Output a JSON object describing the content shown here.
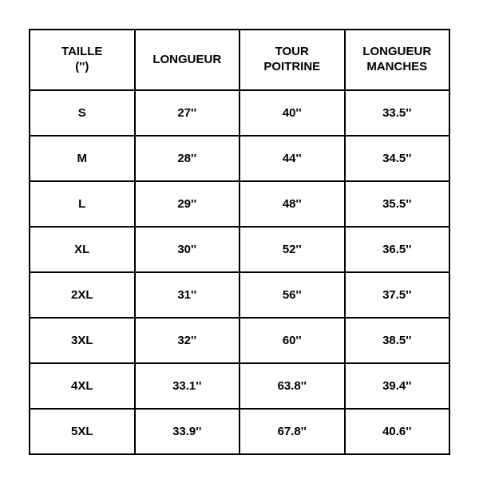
{
  "size_chart": {
    "type": "table",
    "columns": [
      "TAILLE\n('')",
      "LONGUEUR",
      "TOUR\nPOITRINE",
      "LONGUEUR\nMANCHES"
    ],
    "rows": [
      [
        "S",
        "27''",
        "40''",
        "33.5''"
      ],
      [
        "M",
        "28''",
        "44''",
        "34.5''"
      ],
      [
        "L",
        "29''",
        "48''",
        "35.5''"
      ],
      [
        "XL",
        "30''",
        "52''",
        "36.5''"
      ],
      [
        "2XL",
        "31''",
        "56''",
        "37.5''"
      ],
      [
        "3XL",
        "32''",
        "60''",
        "38.5''"
      ],
      [
        "4XL",
        "33.1''",
        "63.8''",
        "39.4''"
      ],
      [
        "5XL",
        "33.9''",
        "67.8''",
        "40.6''"
      ]
    ],
    "border_color": "#000000",
    "background_color": "#ffffff",
    "text_color": "#000000",
    "header_fontsize": 15,
    "cell_fontsize": 15,
    "font_weight": 900,
    "column_widths_pct": [
      25,
      25,
      25,
      25
    ]
  }
}
